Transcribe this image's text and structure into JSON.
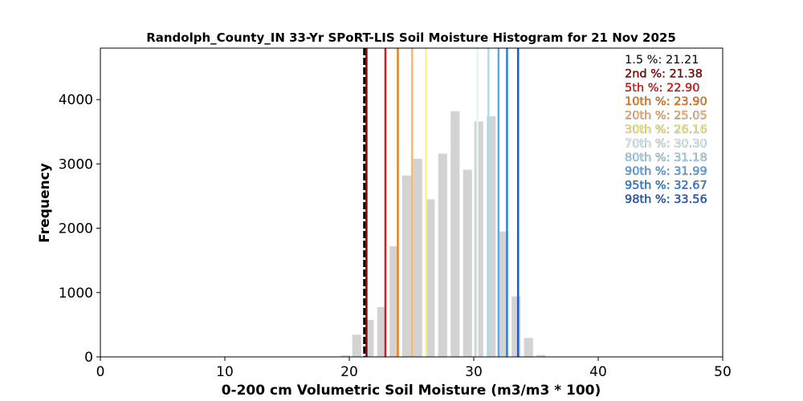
{
  "chart_data": {
    "type": "bar",
    "title": "Randolph_County_IN 33-Yr SPoRT-LIS Soil Moisture Histogram for 21 Nov 2025",
    "xlabel": "0-200 cm Volumetric Soil Moisture (m3/m3 * 100)",
    "ylabel": "Frequency",
    "xlim": [
      0,
      50
    ],
    "ylim": [
      0,
      4800
    ],
    "xticks": [
      0,
      10,
      20,
      30,
      40,
      50
    ],
    "yticks": [
      0,
      1000,
      2000,
      3000,
      4000
    ],
    "grid": false,
    "bar_color": "#d3d3d3",
    "bins": [
      {
        "center": 19.7,
        "value": 25
      },
      {
        "center": 20.6,
        "value": 345
      },
      {
        "center": 21.6,
        "value": 575
      },
      {
        "center": 22.6,
        "value": 775
      },
      {
        "center": 23.6,
        "value": 1720
      },
      {
        "center": 24.6,
        "value": 2820
      },
      {
        "center": 25.5,
        "value": 3080
      },
      {
        "center": 26.5,
        "value": 2450
      },
      {
        "center": 27.5,
        "value": 3160
      },
      {
        "center": 28.5,
        "value": 3820
      },
      {
        "center": 29.5,
        "value": 2910
      },
      {
        "center": 30.4,
        "value": 3660
      },
      {
        "center": 31.4,
        "value": 3740
      },
      {
        "center": 32.4,
        "value": 1950
      },
      {
        "center": 33.4,
        "value": 940
      },
      {
        "center": 34.4,
        "value": 295
      },
      {
        "center": 35.4,
        "value": 30
      }
    ],
    "percentiles": [
      {
        "label": "1.5 %: 21.21",
        "value": 21.21,
        "color": "#000000",
        "dashed": true
      },
      {
        "label": "2nd %: 21.38",
        "value": 21.38,
        "color": "#8b0000",
        "dashed": false
      },
      {
        "label": "5th %: 22.90",
        "value": 22.9,
        "color": "#dd1a1a",
        "dashed": false
      },
      {
        "label": "10th %: 23.90",
        "value": 23.9,
        "color": "#e8801c",
        "dashed": false
      },
      {
        "label": "20th %: 25.05",
        "value": 25.05,
        "color": "#f5b77a",
        "dashed": false
      },
      {
        "label": "30th %: 26.16",
        "value": 26.16,
        "color": "#fff27a",
        "dashed": false
      },
      {
        "label": "70th %: 30.30",
        "value": 30.3,
        "color": "#e0f8fb",
        "dashed": false
      },
      {
        "label": "80th %: 31.18",
        "value": 31.18,
        "color": "#a7dcf5",
        "dashed": false
      },
      {
        "label": "90th %: 31.99",
        "value": 31.99,
        "color": "#5aa9ec",
        "dashed": false
      },
      {
        "label": "95th %: 32.67",
        "value": 32.67,
        "color": "#2f7fd8",
        "dashed": false
      },
      {
        "label": "98th %: 33.56",
        "value": 33.56,
        "color": "#1f5bbf",
        "dashed": false
      }
    ]
  }
}
